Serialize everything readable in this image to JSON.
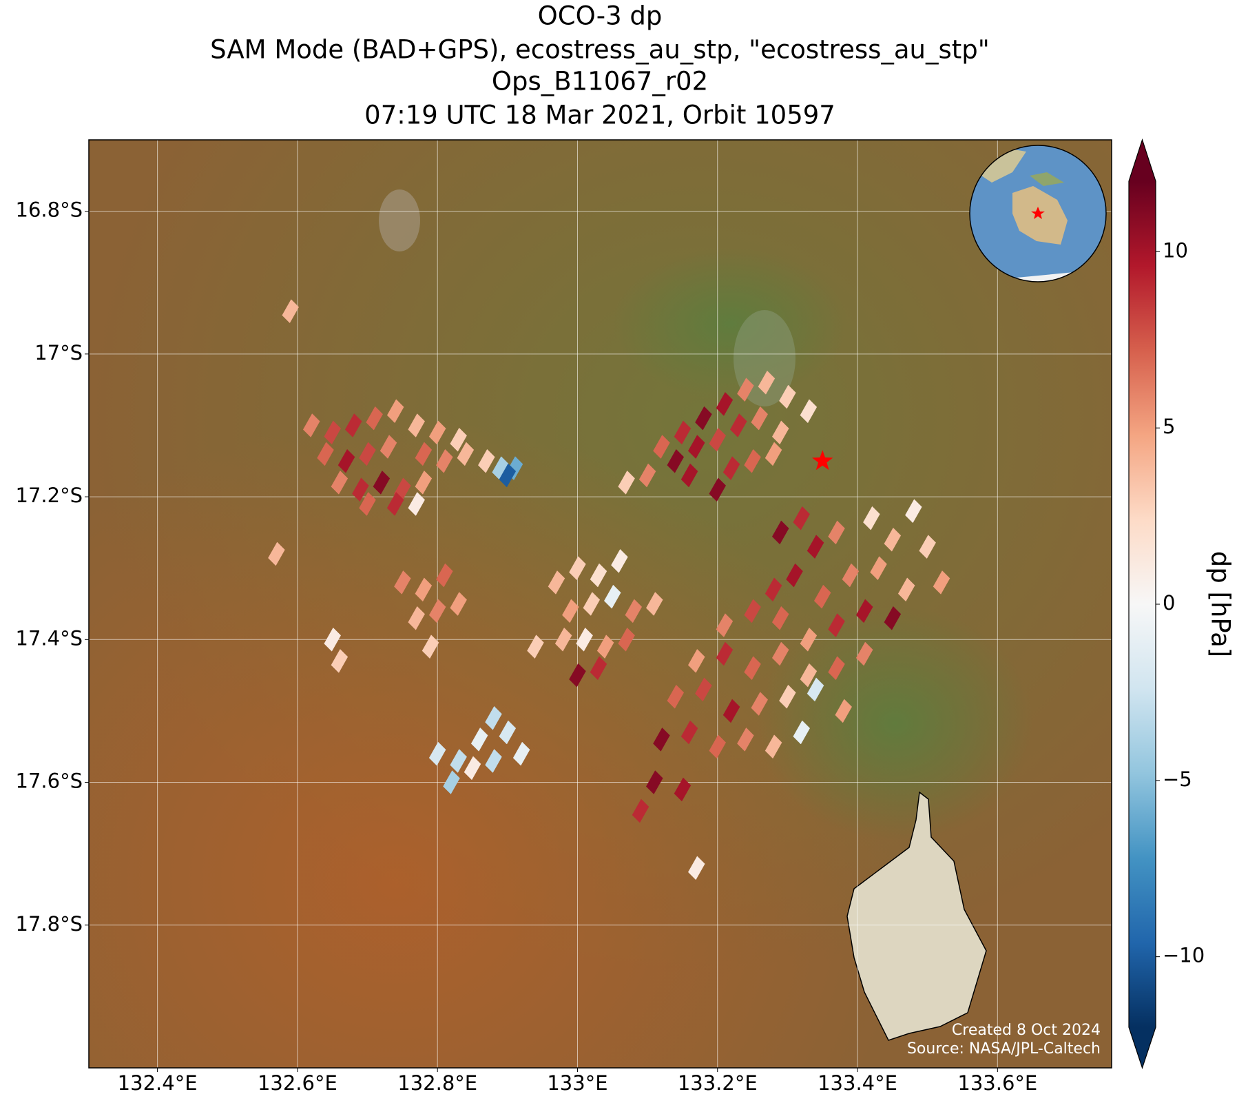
{
  "chart_data": {
    "type": "map",
    "title": [
      "OCO-3 dp",
      "SAM Mode (BAD+GPS), ecostress_au_stp, \"ecostress_au_stp\"",
      "Ops_B11067_r02",
      "07:19 UTC 18 Mar 2021, Orbit 10597"
    ],
    "xlim": [
      132.302,
      133.763
    ],
    "ylim": [
      -18.0,
      -16.7
    ],
    "xticks": [
      {
        "value": 132.4,
        "label": "132.4°E"
      },
      {
        "value": 132.6,
        "label": "132.6°E"
      },
      {
        "value": 132.8,
        "label": "132.8°E"
      },
      {
        "value": 133.0,
        "label": "133°E"
      },
      {
        "value": 133.2,
        "label": "133.2°E"
      },
      {
        "value": 133.4,
        "label": "133.4°E"
      },
      {
        "value": 133.6,
        "label": "133.6°E"
      }
    ],
    "yticks": [
      {
        "value": -16.8,
        "label": "16.8°S"
      },
      {
        "value": -17.0,
        "label": "17°S"
      },
      {
        "value": -17.2,
        "label": "17.2°S"
      },
      {
        "value": -17.4,
        "label": "17.4°S"
      },
      {
        "value": -17.6,
        "label": "17.6°S"
      },
      {
        "value": -17.8,
        "label": "17.8°S"
      }
    ],
    "grid": true,
    "target": [
      133.35,
      -17.15
    ],
    "target_color": "#ff0000",
    "colorbar_label": "dp [hPa]",
    "clim": [
      -12,
      12
    ],
    "cticks": [
      {
        "value": -10,
        "label": "−10"
      },
      {
        "value": -5,
        "label": "−5"
      },
      0,
      5,
      10
    ],
    "colormap": [
      "#053061",
      "#2166ac",
      "#4393c3",
      "#92c5de",
      "#d1e5f0",
      "#f7f7f7",
      "#fddbc7",
      "#f4a582",
      "#d6604d",
      "#b2182b",
      "#67001f"
    ],
    "credits": [
      "Created 8 Oct 2024",
      "Source: NASA/JPL-Caltech"
    ],
    "points": [
      [
        132.62,
        -17.1,
        6
      ],
      [
        132.65,
        -17.11,
        8
      ],
      [
        132.68,
        -17.1,
        9
      ],
      [
        132.71,
        -17.09,
        7
      ],
      [
        132.74,
        -17.08,
        5
      ],
      [
        132.77,
        -17.1,
        4
      ],
      [
        132.8,
        -17.11,
        5
      ],
      [
        132.83,
        -17.12,
        3
      ],
      [
        132.64,
        -17.14,
        7
      ],
      [
        132.67,
        -17.15,
        10
      ],
      [
        132.7,
        -17.14,
        8
      ],
      [
        132.73,
        -17.13,
        6
      ],
      [
        132.78,
        -17.14,
        7
      ],
      [
        132.81,
        -17.15,
        6
      ],
      [
        132.84,
        -17.14,
        4
      ],
      [
        132.87,
        -17.15,
        3
      ],
      [
        132.66,
        -17.18,
        6
      ],
      [
        132.69,
        -17.19,
        9
      ],
      [
        132.72,
        -17.18,
        11
      ],
      [
        132.75,
        -17.19,
        8
      ],
      [
        132.78,
        -17.18,
        5
      ],
      [
        132.7,
        -17.21,
        7
      ],
      [
        132.74,
        -17.21,
        9
      ],
      [
        132.77,
        -17.21,
        1
      ],
      [
        132.89,
        -17.16,
        -4
      ],
      [
        132.91,
        -17.16,
        -6
      ],
      [
        132.9,
        -17.17,
        -10
      ],
      [
        133.12,
        -17.13,
        7
      ],
      [
        133.15,
        -17.11,
        9
      ],
      [
        133.18,
        -17.09,
        11
      ],
      [
        133.21,
        -17.07,
        10
      ],
      [
        133.24,
        -17.05,
        6
      ],
      [
        133.27,
        -17.04,
        4
      ],
      [
        133.3,
        -17.06,
        3
      ],
      [
        133.33,
        -17.08,
        2
      ],
      [
        133.14,
        -17.15,
        11
      ],
      [
        133.17,
        -17.13,
        10
      ],
      [
        133.2,
        -17.12,
        8
      ],
      [
        133.23,
        -17.1,
        9
      ],
      [
        133.26,
        -17.09,
        6
      ],
      [
        133.29,
        -17.11,
        4
      ],
      [
        133.1,
        -17.17,
        6
      ],
      [
        133.16,
        -17.17,
        10
      ],
      [
        133.22,
        -17.16,
        9
      ],
      [
        133.25,
        -17.15,
        7
      ],
      [
        133.28,
        -17.14,
        5
      ],
      [
        133.2,
        -17.19,
        11
      ],
      [
        133.07,
        -17.18,
        3
      ],
      [
        133.29,
        -17.25,
        11
      ],
      [
        133.32,
        -17.23,
        9
      ],
      [
        133.34,
        -17.27,
        10
      ],
      [
        133.37,
        -17.25,
        6
      ],
      [
        133.42,
        -17.23,
        2
      ],
      [
        133.45,
        -17.26,
        4
      ],
      [
        133.48,
        -17.22,
        1
      ],
      [
        133.5,
        -17.27,
        3
      ],
      [
        133.52,
        -17.32,
        5
      ],
      [
        133.28,
        -17.33,
        9
      ],
      [
        133.31,
        -17.31,
        10
      ],
      [
        133.35,
        -17.34,
        7
      ],
      [
        133.39,
        -17.31,
        6
      ],
      [
        133.43,
        -17.3,
        5
      ],
      [
        133.47,
        -17.33,
        4
      ],
      [
        133.21,
        -17.38,
        6
      ],
      [
        133.25,
        -17.36,
        8
      ],
      [
        133.29,
        -17.37,
        7
      ],
      [
        133.33,
        -17.4,
        5
      ],
      [
        133.37,
        -17.38,
        9
      ],
      [
        133.41,
        -17.36,
        10
      ],
      [
        133.45,
        -17.37,
        11
      ],
      [
        133.17,
        -17.43,
        5
      ],
      [
        133.21,
        -17.42,
        9
      ],
      [
        133.25,
        -17.44,
        7
      ],
      [
        133.29,
        -17.42,
        6
      ],
      [
        133.33,
        -17.45,
        4
      ],
      [
        133.37,
        -17.44,
        7
      ],
      [
        133.41,
        -17.42,
        6
      ],
      [
        133.14,
        -17.48,
        7
      ],
      [
        133.18,
        -17.47,
        8
      ],
      [
        133.22,
        -17.5,
        10
      ],
      [
        133.26,
        -17.49,
        6
      ],
      [
        133.3,
        -17.48,
        3
      ],
      [
        133.34,
        -17.47,
        -2
      ],
      [
        133.38,
        -17.5,
        5
      ],
      [
        133.12,
        -17.54,
        11
      ],
      [
        133.16,
        -17.53,
        9
      ],
      [
        133.2,
        -17.55,
        7
      ],
      [
        133.24,
        -17.54,
        6
      ],
      [
        133.28,
        -17.55,
        4
      ],
      [
        133.32,
        -17.53,
        -1
      ],
      [
        133.11,
        -17.6,
        11
      ],
      [
        133.15,
        -17.61,
        10
      ],
      [
        133.09,
        -17.64,
        9
      ],
      [
        132.97,
        -17.32,
        4
      ],
      [
        133.0,
        -17.3,
        3
      ],
      [
        133.03,
        -17.31,
        2
      ],
      [
        133.06,
        -17.29,
        1
      ],
      [
        132.99,
        -17.36,
        5
      ],
      [
        133.02,
        -17.35,
        3
      ],
      [
        133.05,
        -17.34,
        -1
      ],
      [
        133.08,
        -17.36,
        6
      ],
      [
        133.11,
        -17.35,
        4
      ],
      [
        132.98,
        -17.4,
        4
      ],
      [
        133.01,
        -17.4,
        1
      ],
      [
        133.04,
        -17.41,
        5
      ],
      [
        133.07,
        -17.4,
        7
      ],
      [
        133.0,
        -17.45,
        11
      ],
      [
        133.03,
        -17.44,
        9
      ],
      [
        132.94,
        -17.41,
        3
      ],
      [
        132.75,
        -17.32,
        6
      ],
      [
        132.78,
        -17.33,
        5
      ],
      [
        132.81,
        -17.31,
        7
      ],
      [
        132.77,
        -17.37,
        4
      ],
      [
        132.8,
        -17.36,
        6
      ],
      [
        132.83,
        -17.35,
        5
      ],
      [
        132.79,
        -17.41,
        3
      ],
      [
        132.65,
        -17.4,
        1
      ],
      [
        132.66,
        -17.43,
        3
      ],
      [
        132.57,
        -17.28,
        4
      ],
      [
        132.8,
        -17.56,
        -2
      ],
      [
        132.83,
        -17.57,
        -3
      ],
      [
        132.86,
        -17.54,
        -1
      ],
      [
        132.88,
        -17.57,
        -3
      ],
      [
        132.9,
        -17.53,
        -2
      ],
      [
        132.92,
        -17.56,
        -1
      ],
      [
        132.82,
        -17.6,
        -4
      ],
      [
        132.85,
        -17.58,
        1
      ],
      [
        132.88,
        -17.51,
        -3
      ],
      [
        132.59,
        -16.94,
        4
      ],
      [
        133.17,
        -17.72,
        1
      ]
    ]
  }
}
